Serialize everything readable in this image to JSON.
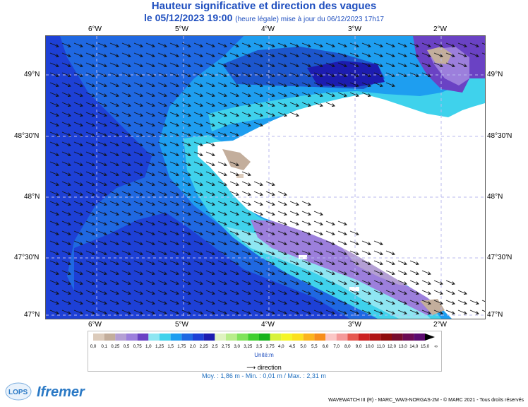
{
  "header": {
    "title": "Hauteur significative et direction des vagues",
    "date_label": "le 05/12/2023 19:00",
    "update_note": "(heure légale) mise à jour du 06/12/2023 17h17"
  },
  "map": {
    "lon_ticks": [
      "6°W",
      "5°W",
      "4°W",
      "3°W",
      "2°W"
    ],
    "lat_ticks": [
      "49°N",
      "48°30'N",
      "48°N",
      "47°30'N",
      "47°N"
    ],
    "colors": {
      "land": "#ffffff",
      "coast_brown": "#c3ae9c",
      "grid_line": "#b9b9ee"
    }
  },
  "legend": {
    "scale_values": [
      "0,0",
      "0,1",
      "0,25",
      "0,5",
      "0,75",
      "1,0",
      "1,25",
      "1,5",
      "1,75",
      "2,0",
      "2,25",
      "2,5",
      "2,75",
      "3,0",
      "3,25",
      "3,5",
      "3,75",
      "4,0",
      "4,5",
      "5,0",
      "5,5",
      "6,0",
      "7,0",
      "8,0",
      "9,0",
      "10,0",
      "11,0",
      "12,0",
      "13,0",
      "14,0",
      "15,0",
      "∞"
    ],
    "scale_colors": [
      "#dccbbb",
      "#c3ae9c",
      "#b49fd4",
      "#9c7fdc",
      "#6a42c4",
      "#8ee6f2",
      "#3fd2ec",
      "#1e9ef0",
      "#1f68e2",
      "#1d40d6",
      "#1c1cb0",
      "#dff3c0",
      "#b8ed8a",
      "#7fe35a",
      "#3fcf2f",
      "#16b31c",
      "#d8f23a",
      "#f5f527",
      "#fce01d",
      "#fbb41c",
      "#f78e1b",
      "#fbc7c6",
      "#f49a9a",
      "#e6584f",
      "#cc2020",
      "#b01212",
      "#8f0b0b",
      "#770b2c",
      "#6b0a53",
      "#5b0a6e"
    ],
    "unit": "Unité:m",
    "direction_label": "direction",
    "stats": "Moy. : 1,86 m  -  Min. : 0,01 m / Max. : 2,31 m"
  },
  "footer": {
    "credit": "WAVEWATCH III (R) - MARC_WW3-NORGAS-2M - © MARC 2021 - Tous droits réservés"
  },
  "logos": {
    "lops": "LOPS",
    "ifremer": "Ifremer"
  }
}
